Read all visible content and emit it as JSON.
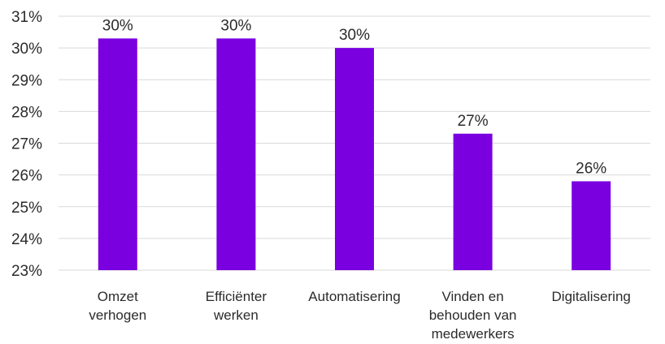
{
  "chart_data": {
    "type": "bar",
    "categories": [
      [
        "Omzet",
        "verhogen"
      ],
      [
        "Efficiënter",
        "werken"
      ],
      [
        "Automatisering"
      ],
      [
        "Vinden en",
        "behouden van",
        "medewerkers"
      ],
      [
        "Digitalisering"
      ]
    ],
    "values": [
      30.3,
      30.3,
      30.0,
      27.3,
      25.8
    ],
    "data_labels": [
      "30%",
      "30%",
      "30%",
      "27%",
      "26%"
    ],
    "ylim": [
      23,
      31
    ],
    "yticks": [
      23,
      24,
      25,
      26,
      27,
      28,
      29,
      30,
      31
    ],
    "ytick_labels": [
      "23%",
      "24%",
      "25%",
      "26%",
      "27%",
      "28%",
      "29%",
      "30%",
      "31%"
    ],
    "grid": true,
    "bar_color": "#7a00e0",
    "title": "",
    "xlabel": "",
    "ylabel": ""
  }
}
